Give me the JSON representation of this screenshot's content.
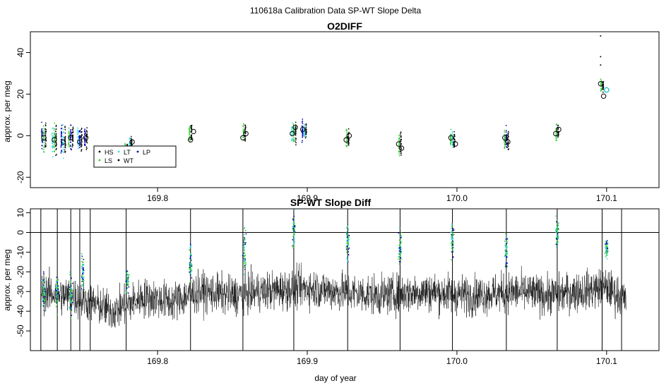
{
  "page": {
    "title": "110618a   Calibration Data SP-WT Slope Delta",
    "x_axis_label": "day of year"
  },
  "colors": {
    "HS": "#0a0a0a",
    "LS": "#33cc33",
    "LT": "#33ddee",
    "WT": "#000000",
    "LP": "#0000bb",
    "open_circle": "#000000",
    "highlight_circle": "#00bbbb",
    "trace": "#000000",
    "zero_line": "#000000",
    "background": "#ffffff"
  },
  "chart_data": [
    {
      "type": "scatter",
      "title": "O2DIFF",
      "ylabel": "approx. per meg",
      "xlim": [
        169.715,
        170.135
      ],
      "ylim": [
        -25,
        50
      ],
      "yticks": [
        -20,
        0,
        20,
        40
      ],
      "xticks": [
        169.8,
        169.9,
        170.0,
        170.1
      ],
      "legend": {
        "placement": "bottom-left",
        "entries": [
          {
            "key": "HS",
            "label": "HS",
            "color": "#0a0a0a"
          },
          {
            "key": "LS",
            "label": "LS",
            "color": "#33cc33"
          },
          {
            "key": "LT",
            "label": "LT",
            "color": "#33ddee"
          },
          {
            "key": "WT",
            "label": "WT",
            "color": "#000000"
          },
          {
            "key": "LP",
            "label": "LP",
            "color": "#0000bb"
          }
        ]
      },
      "groups": [
        {
          "x": 169.724,
          "center": -1,
          "spread": 8,
          "series": [
            "LP",
            "LS",
            "HS"
          ]
        },
        {
          "x": 169.731,
          "center": -2,
          "spread": 8,
          "series": [
            "LT",
            "LS",
            "HS"
          ]
        },
        {
          "x": 169.737,
          "center": -3,
          "spread": 8,
          "series": [
            "LP",
            "LT",
            "HS"
          ]
        },
        {
          "x": 169.742,
          "center": -1,
          "spread": 7,
          "series": [
            "LS",
            "LP",
            "HS"
          ]
        },
        {
          "x": 169.748,
          "center": -2,
          "spread": 7,
          "series": [
            "LT",
            "LP",
            "HS"
          ]
        },
        {
          "x": 169.752,
          "center": -1,
          "spread": 6,
          "series": [
            "LP",
            "HS"
          ]
        },
        {
          "x": 169.779,
          "center": -7,
          "spread": 5,
          "series": [
            "LS",
            "HS"
          ]
        },
        {
          "x": 169.782,
          "center": -4,
          "spread": 5,
          "series": [
            "LT",
            "HS"
          ]
        },
        {
          "x": 169.822,
          "center": 1,
          "spread": 6,
          "series": [
            "LS",
            "HS"
          ]
        },
        {
          "x": 169.858,
          "center": 1,
          "spread": 6,
          "series": [
            "LS",
            "HS"
          ]
        },
        {
          "x": 169.891,
          "center": 2,
          "spread": 6,
          "series": [
            "LT",
            "LS",
            "HS"
          ]
        },
        {
          "x": 169.898,
          "center": 2,
          "spread": 5,
          "series": [
            "LP",
            "LT",
            "HS"
          ]
        },
        {
          "x": 169.927,
          "center": -1,
          "spread": 5,
          "series": [
            "LS",
            "HS"
          ]
        },
        {
          "x": 169.962,
          "center": -4,
          "spread": 7,
          "series": [
            "LS",
            "HS"
          ]
        },
        {
          "x": 169.997,
          "center": -2,
          "spread": 5,
          "series": [
            "LS",
            "LT",
            "HS"
          ]
        },
        {
          "x": 170.033,
          "center": -2,
          "spread": 6,
          "series": [
            "LS",
            "LP",
            "HS"
          ]
        },
        {
          "x": 170.067,
          "center": 2,
          "spread": 5,
          "series": [
            "LS",
            "HS"
          ]
        },
        {
          "x": 170.097,
          "center": 24,
          "spread": 4,
          "series": [
            "LS",
            "HS"
          ]
        }
      ],
      "circles": [
        {
          "x": 169.724,
          "y": -1
        },
        {
          "x": 169.731,
          "y": -2
        },
        {
          "x": 169.737,
          "y": -3
        },
        {
          "x": 169.742,
          "y": -1
        },
        {
          "x": 169.748,
          "y": -3
        },
        {
          "x": 169.752,
          "y": -1
        },
        {
          "x": 169.779,
          "y": -10
        },
        {
          "x": 169.78,
          "y": -6
        },
        {
          "x": 169.783,
          "y": -3
        },
        {
          "x": 169.822,
          "y": -2
        },
        {
          "x": 169.824,
          "y": 2
        },
        {
          "x": 169.857,
          "y": -1
        },
        {
          "x": 169.859,
          "y": 1
        },
        {
          "x": 169.89,
          "y": 1
        },
        {
          "x": 169.892,
          "y": 4
        },
        {
          "x": 169.897,
          "y": 3
        },
        {
          "x": 169.926,
          "y": -2
        },
        {
          "x": 169.928,
          "y": 0
        },
        {
          "x": 169.961,
          "y": -4
        },
        {
          "x": 169.963,
          "y": -6
        },
        {
          "x": 169.996,
          "y": -1
        },
        {
          "x": 169.999,
          "y": -4
        },
        {
          "x": 170.032,
          "y": -1
        },
        {
          "x": 170.034,
          "y": -3
        },
        {
          "x": 170.066,
          "y": 1
        },
        {
          "x": 170.068,
          "y": 3
        },
        {
          "x": 170.096,
          "y": 25
        },
        {
          "x": 170.098,
          "y": 19
        }
      ],
      "highlight_circles": [
        {
          "x": 170.1,
          "y": 22
        }
      ],
      "outliers": [
        {
          "x": 170.096,
          "y": 48
        },
        {
          "x": 170.096,
          "y": 38
        },
        {
          "x": 170.096,
          "y": 34
        }
      ]
    },
    {
      "type": "line",
      "title": "SP-WT Slope Diff",
      "ylabel": "approx. per meg",
      "xlabel": "day of year",
      "xlim": [
        169.715,
        170.135
      ],
      "ylim": [
        -60,
        12
      ],
      "yticks": [
        -50,
        -40,
        -30,
        -20,
        -10,
        0,
        10
      ],
      "xticks": [
        169.8,
        169.9,
        170.0,
        170.1
      ],
      "zero_line": 0,
      "trace_range": [
        169.722,
        170.113
      ],
      "trace_baseline": [
        {
          "x": 169.722,
          "y": -30
        },
        {
          "x": 169.745,
          "y": -33
        },
        {
          "x": 169.77,
          "y": -40
        },
        {
          "x": 169.79,
          "y": -33
        },
        {
          "x": 169.81,
          "y": -35
        },
        {
          "x": 169.83,
          "y": -30
        },
        {
          "x": 169.85,
          "y": -32
        },
        {
          "x": 169.87,
          "y": -30
        },
        {
          "x": 169.9,
          "y": -28
        },
        {
          "x": 169.92,
          "y": -30
        },
        {
          "x": 169.95,
          "y": -32
        },
        {
          "x": 169.98,
          "y": -30
        },
        {
          "x": 170.01,
          "y": -32
        },
        {
          "x": 170.04,
          "y": -30
        },
        {
          "x": 170.06,
          "y": -32
        },
        {
          "x": 170.08,
          "y": -30
        },
        {
          "x": 170.1,
          "y": -28
        },
        {
          "x": 170.113,
          "y": -35
        }
      ],
      "trace_noise": 13,
      "spikes": [
        169.722,
        169.733,
        169.742,
        169.748,
        169.755,
        169.779,
        169.822,
        169.857,
        169.891,
        169.927,
        169.962,
        169.997,
        170.033,
        170.067,
        170.097,
        170.11
      ],
      "calibration_bands": [
        {
          "x": 169.724,
          "center": -30,
          "spread": 10
        },
        {
          "x": 169.733,
          "center": -30,
          "spread": 10
        },
        {
          "x": 169.742,
          "center": -32,
          "spread": 10
        },
        {
          "x": 169.75,
          "center": -20,
          "spread": 10
        },
        {
          "x": 169.78,
          "center": -25,
          "spread": 8
        },
        {
          "x": 169.822,
          "center": -15,
          "spread": 10
        },
        {
          "x": 169.858,
          "center": -10,
          "spread": 12
        },
        {
          "x": 169.891,
          "center": 0,
          "spread": 10
        },
        {
          "x": 169.927,
          "center": -5,
          "spread": 10
        },
        {
          "x": 169.962,
          "center": -8,
          "spread": 10
        },
        {
          "x": 169.997,
          "center": -3,
          "spread": 10
        },
        {
          "x": 170.033,
          "center": -10,
          "spread": 10
        },
        {
          "x": 170.067,
          "center": 0,
          "spread": 8
        },
        {
          "x": 170.1,
          "center": -8,
          "spread": 5
        }
      ]
    }
  ]
}
